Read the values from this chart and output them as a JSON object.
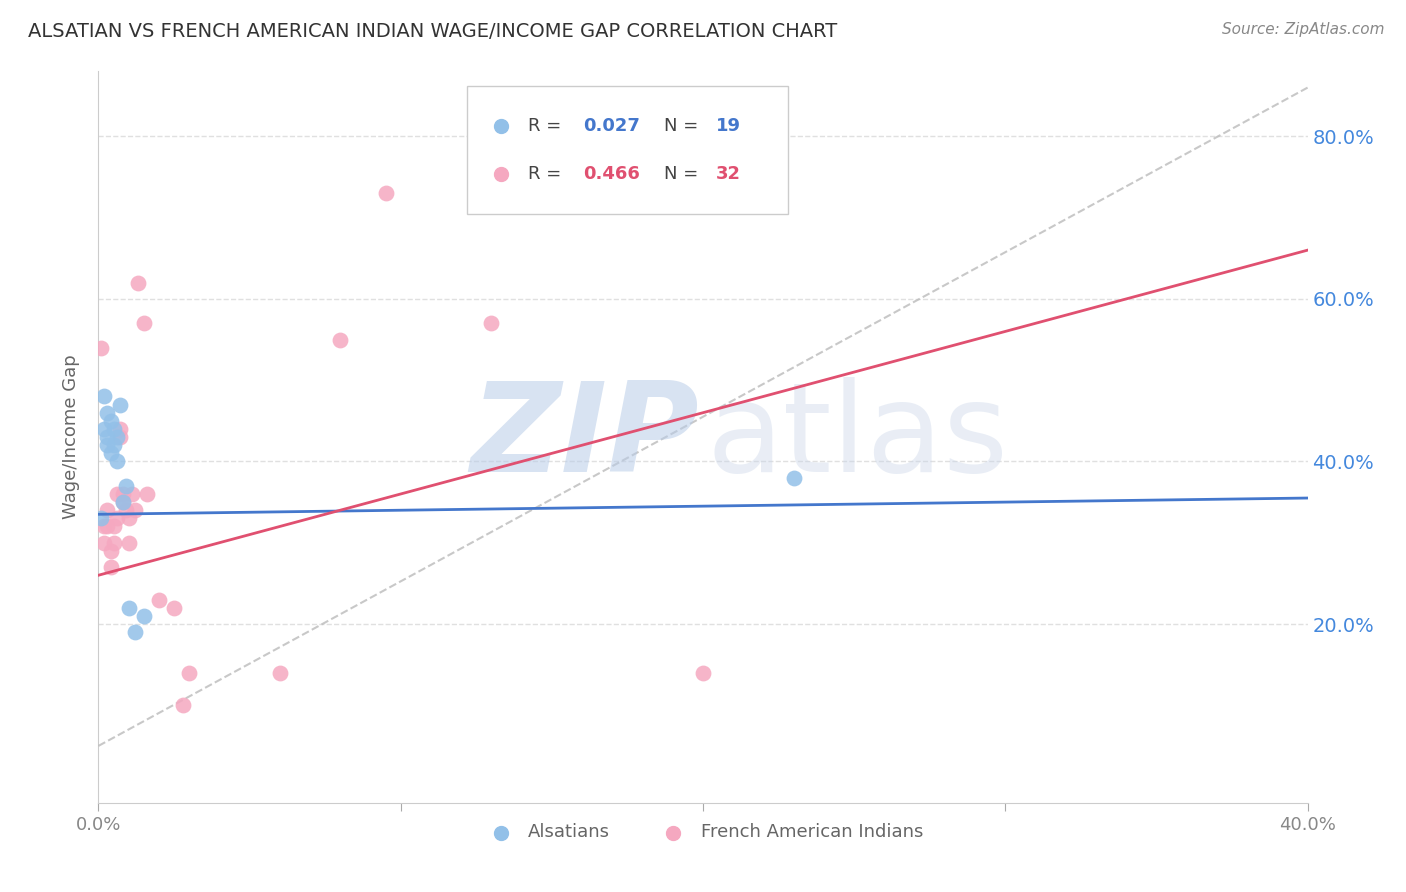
{
  "title": "ALSATIAN VS FRENCH AMERICAN INDIAN WAGE/INCOME GAP CORRELATION CHART",
  "source": "Source: ZipAtlas.com",
  "ylabel": "Wage/Income Gap",
  "xlim": [
    0.0,
    0.4
  ],
  "ylim": [
    -0.02,
    0.88
  ],
  "ytick_values": [
    0.2,
    0.4,
    0.6,
    0.8
  ],
  "xtick_values": [
    0.0,
    0.1,
    0.2,
    0.3,
    0.4
  ],
  "background_color": "#ffffff",
  "grid_color": "#e0e0e0",
  "alsatian_color": "#92c0e8",
  "french_color": "#f5a8c0",
  "alsatian_R": 0.027,
  "alsatian_N": 19,
  "french_R": 0.466,
  "french_N": 32,
  "alsatian_line_color": "#4477cc",
  "french_line_color": "#e05070",
  "diagonal_line_color": "#bbbbbb",
  "alsatian_x": [
    0.001,
    0.002,
    0.002,
    0.003,
    0.003,
    0.003,
    0.004,
    0.004,
    0.005,
    0.005,
    0.006,
    0.006,
    0.007,
    0.008,
    0.009,
    0.01,
    0.012,
    0.015,
    0.23
  ],
  "alsatian_y": [
    0.33,
    0.48,
    0.44,
    0.46,
    0.43,
    0.42,
    0.45,
    0.41,
    0.44,
    0.42,
    0.43,
    0.4,
    0.47,
    0.35,
    0.37,
    0.22,
    0.19,
    0.21,
    0.38
  ],
  "french_x": [
    0.001,
    0.002,
    0.002,
    0.003,
    0.003,
    0.004,
    0.004,
    0.005,
    0.005,
    0.006,
    0.006,
    0.007,
    0.007,
    0.008,
    0.008,
    0.009,
    0.01,
    0.01,
    0.011,
    0.012,
    0.013,
    0.015,
    0.016,
    0.02,
    0.025,
    0.028,
    0.03,
    0.06,
    0.08,
    0.095,
    0.13,
    0.2
  ],
  "french_y": [
    0.54,
    0.32,
    0.3,
    0.34,
    0.32,
    0.29,
    0.27,
    0.32,
    0.3,
    0.36,
    0.33,
    0.44,
    0.43,
    0.36,
    0.35,
    0.34,
    0.33,
    0.3,
    0.36,
    0.34,
    0.62,
    0.57,
    0.36,
    0.23,
    0.22,
    0.1,
    0.14,
    0.14,
    0.55,
    0.73,
    0.57,
    0.14
  ],
  "alsatian_line_x0": 0.0,
  "alsatian_line_x1": 0.4,
  "alsatian_line_y0": 0.335,
  "alsatian_line_y1": 0.355,
  "french_line_x0": 0.0,
  "french_line_x1": 0.4,
  "french_line_y0": 0.26,
  "french_line_y1": 0.66
}
